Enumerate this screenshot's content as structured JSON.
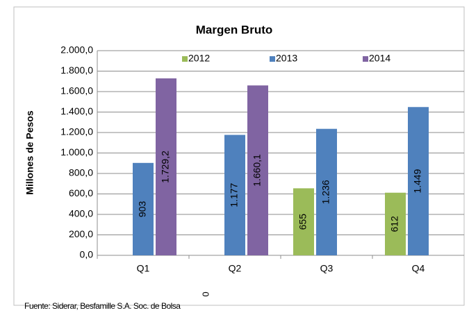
{
  "chart_data": {
    "type": "bar",
    "title": "Margen Bruto",
    "y_label": "Millones de Pesos",
    "source": "Fuente: Siderar, Besfamille S.A. Soc. de Bolsa",
    "annotation": "0",
    "categories": [
      "Q1",
      "Q2",
      "Q3",
      "Q4"
    ],
    "series": [
      {
        "name": "2012",
        "color": "#9bbb59",
        "values": [
          null,
          null,
          655,
          612
        ],
        "value_labels": [
          null,
          null,
          "655",
          "612"
        ]
      },
      {
        "name": "2013",
        "color": "#4f81bd",
        "values": [
          903,
          1177,
          1236,
          1449
        ],
        "value_labels": [
          "903",
          "1.177",
          "1.236",
          "1.449"
        ]
      },
      {
        "name": "2014",
        "color": "#8064a2",
        "values": [
          1729.2,
          1660.1,
          null,
          null
        ],
        "value_labels": [
          "1.729,2",
          "1.660,1",
          null,
          null
        ]
      }
    ],
    "ylim": [
      0,
      2000
    ],
    "yticks": [
      {
        "value": 0,
        "label": "0,0"
      },
      {
        "value": 200,
        "label": "200,0"
      },
      {
        "value": 400,
        "label": "400,0"
      },
      {
        "value": 600,
        "label": "600,0"
      },
      {
        "value": 800,
        "label": "800,0"
      },
      {
        "value": 1000,
        "label": "1.000,0"
      },
      {
        "value": 1200,
        "label": "1.200,0"
      },
      {
        "value": 1400,
        "label": "1.400,0"
      },
      {
        "value": 1600,
        "label": "1.600,0"
      },
      {
        "value": 1800,
        "label": "1.800,0"
      },
      {
        "value": 2000,
        "label": "2.000,0"
      }
    ],
    "grid": true,
    "legend": "top"
  }
}
